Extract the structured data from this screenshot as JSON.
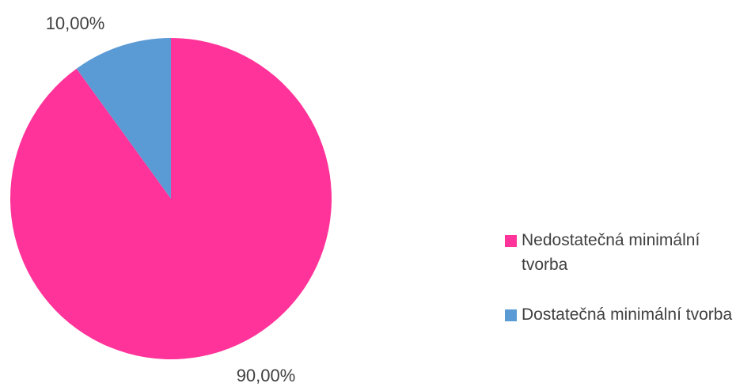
{
  "chart_data": {
    "type": "pie",
    "title": "",
    "legend_position": "right",
    "slices": [
      {
        "label": "Nedostatečná minimální tvorba",
        "value": 90.0,
        "value_label": "90,00%",
        "color": "#FF3399"
      },
      {
        "label": "Dostatečná minimální tvorba",
        "value": 10.0,
        "value_label": "10,00%",
        "color": "#5B9BD5"
      }
    ]
  }
}
